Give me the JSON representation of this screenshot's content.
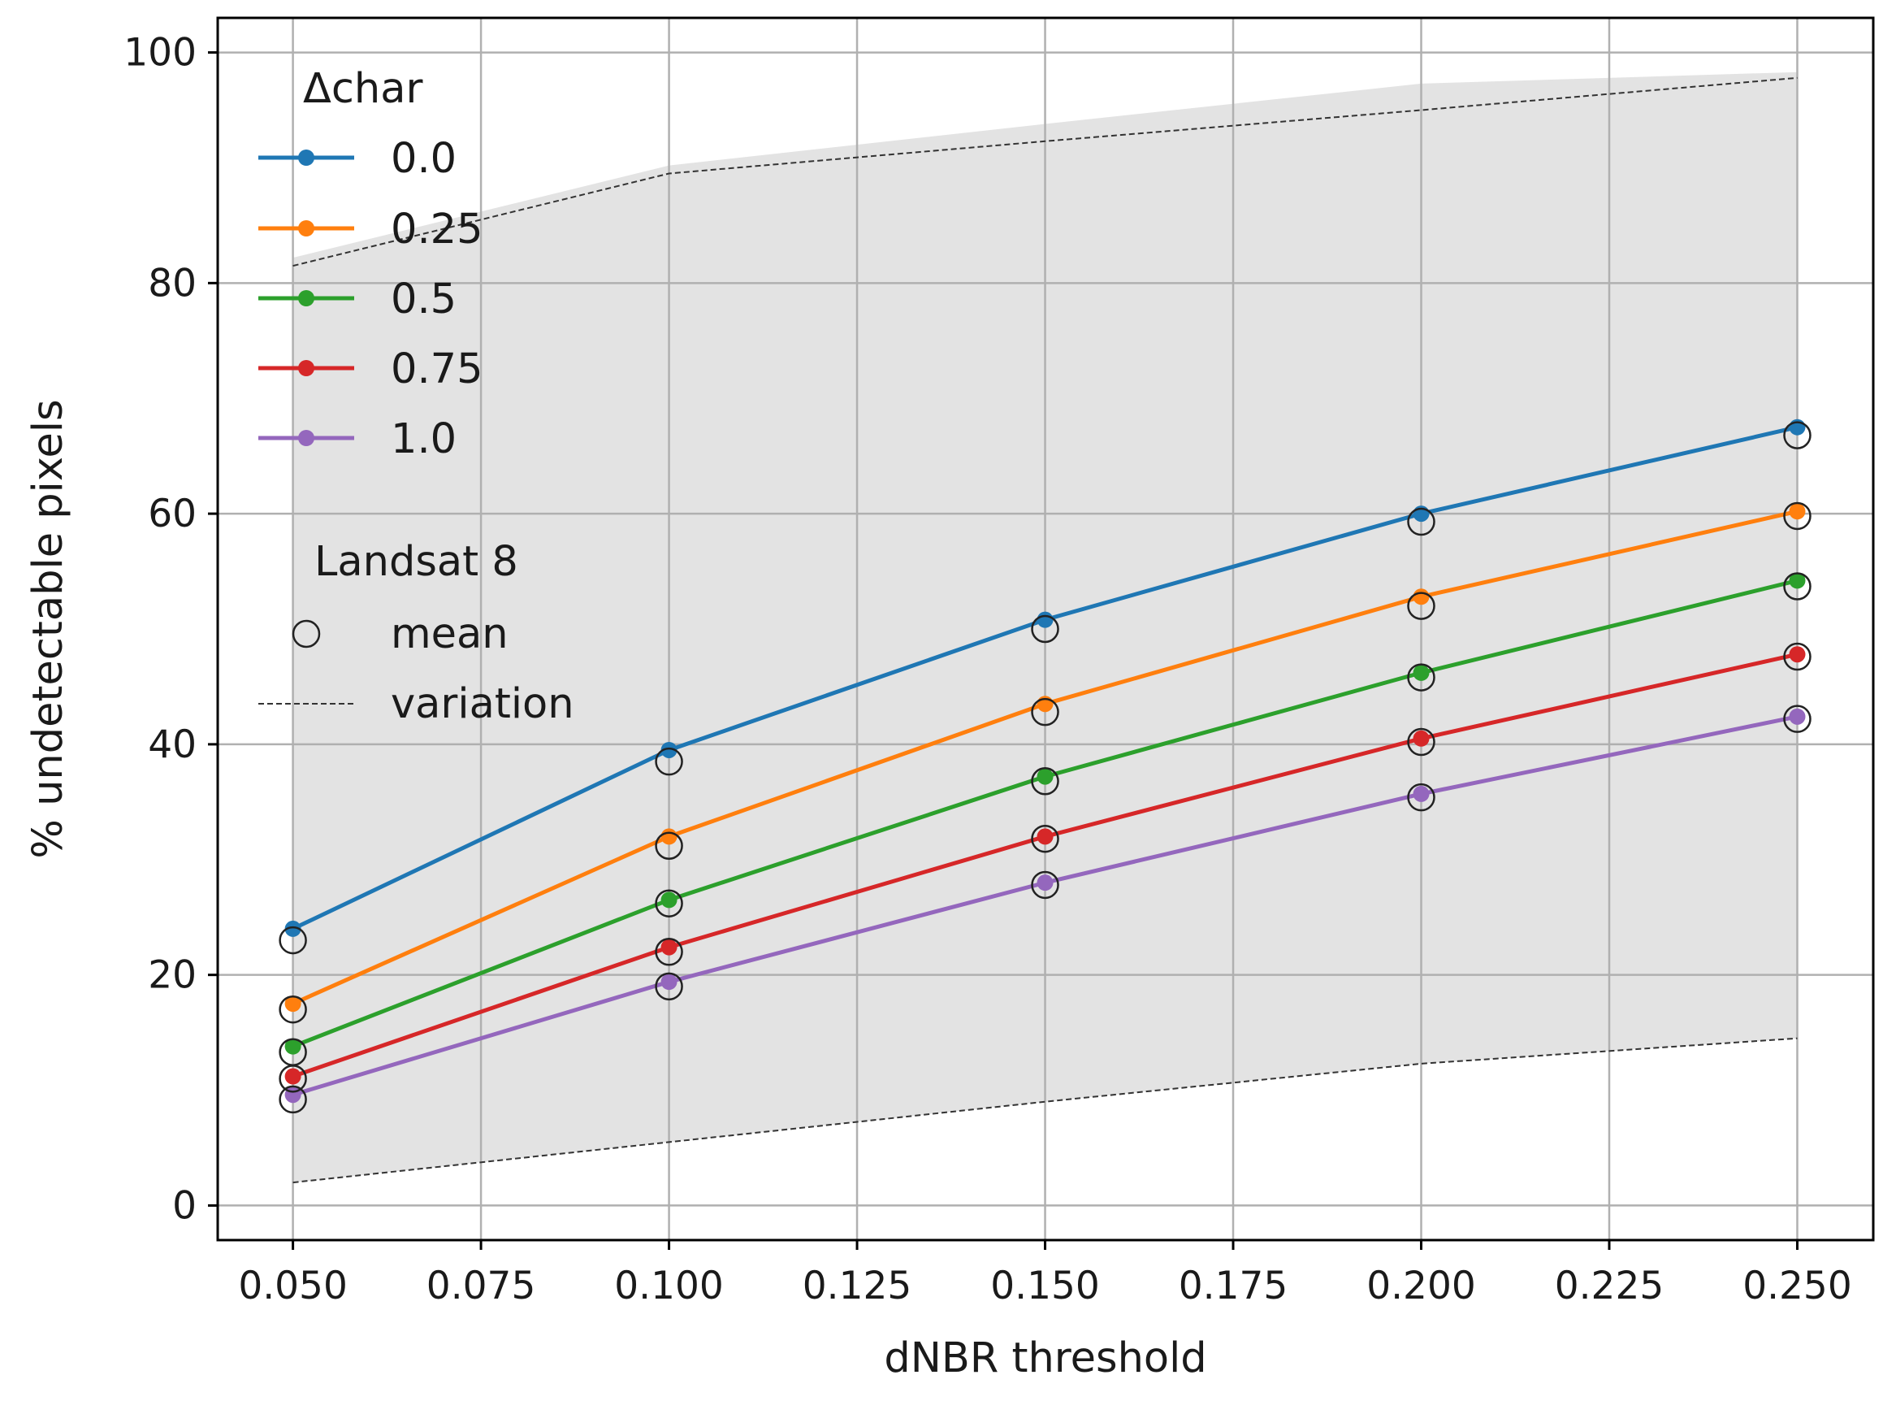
{
  "chart_data": {
    "type": "line",
    "xlabel": "dNBR threshold",
    "ylabel": "% undetectable pixels",
    "xlim": [
      0.04,
      0.2601
    ],
    "ylim": [
      -3,
      103
    ],
    "grid": true,
    "x": [
      0.05,
      0.1,
      0.15,
      0.2,
      0.25
    ],
    "xticks": [
      0.05,
      0.075,
      0.1,
      0.125,
      0.15,
      0.175,
      0.2,
      0.225,
      0.25
    ],
    "xtick_labels": [
      "0.050",
      "0.075",
      "0.100",
      "0.125",
      "0.150",
      "0.175",
      "0.200",
      "0.225",
      "0.250"
    ],
    "yticks": [
      0,
      20,
      40,
      60,
      80,
      100
    ],
    "ytick_labels": [
      "0",
      "20",
      "40",
      "60",
      "80",
      "100"
    ],
    "legend_placement": "upper-left",
    "legend_title": "Δchar",
    "series": [
      {
        "name": "0.0",
        "color": "#1f77b4",
        "values": [
          24.0,
          39.5,
          50.8,
          60.0,
          67.5
        ],
        "mean": [
          23.0,
          38.5,
          50.0,
          59.3,
          66.8
        ]
      },
      {
        "name": "0.25",
        "color": "#ff7f0e",
        "values": [
          17.5,
          32.0,
          43.5,
          52.8,
          60.2
        ],
        "mean": [
          17.0,
          31.2,
          42.8,
          52.0,
          59.8
        ]
      },
      {
        "name": "0.5",
        "color": "#2ca02c",
        "values": [
          13.8,
          26.5,
          37.2,
          46.2,
          54.2
        ],
        "mean": [
          13.3,
          26.2,
          36.8,
          45.8,
          53.7
        ]
      },
      {
        "name": "0.75",
        "color": "#d62728",
        "values": [
          11.2,
          22.4,
          32.0,
          40.5,
          47.8
        ],
        "mean": [
          11.0,
          22.0,
          31.8,
          40.2,
          47.6
        ]
      },
      {
        "name": "1.0",
        "color": "#9467bd",
        "values": [
          9.6,
          19.4,
          28.0,
          35.7,
          42.4
        ],
        "mean": [
          9.2,
          19.0,
          27.8,
          35.4,
          42.2
        ]
      }
    ],
    "secondary_legend": {
      "title": "Landsat 8",
      "mean_label": "mean",
      "variation_label": "variation"
    },
    "variation": {
      "upper": [
        81.5,
        89.5,
        92.3,
        95.0,
        97.8
      ],
      "lower": [
        2.0,
        5.5,
        9.0,
        12.3,
        14.5
      ],
      "band_upper": [
        82.2,
        90.2,
        93.8,
        97.3,
        98.3
      ],
      "band_lower": [
        2.0,
        5.5,
        9.0,
        12.3,
        14.5
      ],
      "band_color": "#e3e3e3"
    }
  }
}
